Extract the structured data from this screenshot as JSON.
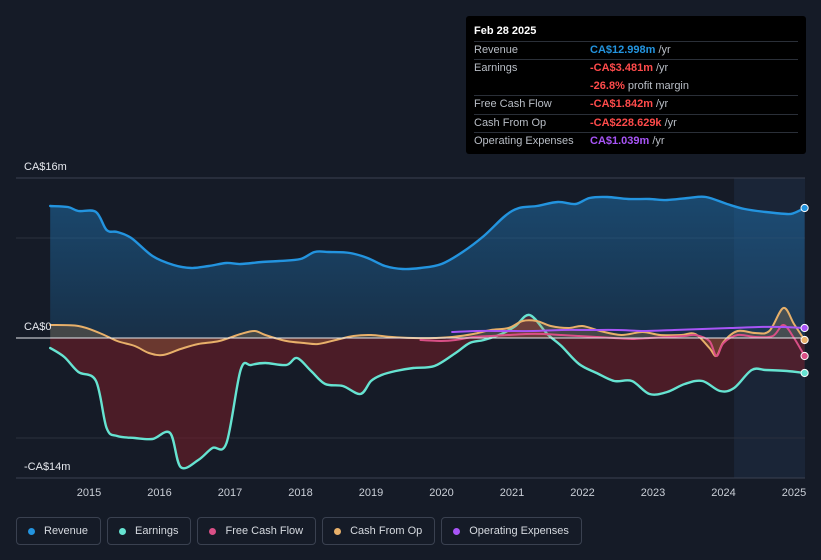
{
  "tooltip": {
    "date": "Feb 28 2025",
    "rows": [
      {
        "name": "Revenue",
        "value": "CA$12.998m",
        "unit": "/yr",
        "color": "#2394df"
      },
      {
        "name": "Earnings",
        "value": "-CA$3.481m",
        "unit": "/yr",
        "color": "#ff4b4b"
      },
      {
        "name": "",
        "value": "-26.8%",
        "unit": "profit margin",
        "color": "#ff4b4b"
      },
      {
        "name": "Free Cash Flow",
        "value": "-CA$1.842m",
        "unit": "/yr",
        "color": "#ff4b4b"
      },
      {
        "name": "Cash From Op",
        "value": "-CA$228.629k",
        "unit": "/yr",
        "color": "#ff4b4b"
      },
      {
        "name": "Operating Expenses",
        "value": "CA$1.039m",
        "unit": "/yr",
        "color": "#a855f7"
      }
    ]
  },
  "legend": [
    {
      "label": "Revenue",
      "color": "#2394df"
    },
    {
      "label": "Earnings",
      "color": "#66e3d1"
    },
    {
      "label": "Free Cash Flow",
      "color": "#d94f86"
    },
    {
      "label": "Cash From Op",
      "color": "#e8b06a"
    },
    {
      "label": "Operating Expenses",
      "color": "#a855f7"
    }
  ],
  "chart_data": {
    "type": "area",
    "title": "",
    "xlabel": "",
    "ylabel": "",
    "unit": "CA$ millions",
    "y_axis_labels": [
      "CA$16m",
      "CA$0",
      "-CA$14m"
    ],
    "x_ticks": [
      "2015",
      "2016",
      "2017",
      "2018",
      "2019",
      "2020",
      "2021",
      "2022",
      "2023",
      "2024",
      "2025"
    ],
    "x_tick_values": [
      2015,
      2016,
      2017,
      2018,
      2019,
      2020,
      2021,
      2022,
      2023,
      2024,
      2025
    ],
    "xlim": [
      2014.4,
      2025.2
    ],
    "ylim": [
      -14,
      16
    ],
    "highlight_from": 2024.15,
    "series": [
      {
        "name": "Revenue",
        "color": "#2394df",
        "fill": true,
        "x": [
          2014.45,
          2014.7,
          2014.85,
          2015.1,
          2015.25,
          2015.4,
          2015.6,
          2015.9,
          2016.2,
          2016.45,
          2016.7,
          2016.95,
          2017.15,
          2017.45,
          2017.7,
          2018.0,
          2018.2,
          2018.4,
          2018.7,
          2018.95,
          2019.2,
          2019.45,
          2019.7,
          2020.0,
          2020.3,
          2020.6,
          2020.9,
          2021.1,
          2021.35,
          2021.65,
          2021.9,
          2022.1,
          2022.35,
          2022.65,
          2022.95,
          2023.2,
          2023.5,
          2023.75,
          2024.05,
          2024.3,
          2024.6,
          2024.9,
          2025.0,
          2025.15
        ],
        "values": [
          13.2,
          13.1,
          12.7,
          12.6,
          10.8,
          10.6,
          10.0,
          8.2,
          7.3,
          7.0,
          7.2,
          7.5,
          7.4,
          7.6,
          7.7,
          7.9,
          8.6,
          8.6,
          8.5,
          8.0,
          7.2,
          6.9,
          7.0,
          7.4,
          8.6,
          10.2,
          12.2,
          13.0,
          13.2,
          13.6,
          13.4,
          14.0,
          14.1,
          13.9,
          13.9,
          13.8,
          14.0,
          14.1,
          13.4,
          12.9,
          12.6,
          12.4,
          12.5,
          13.0
        ]
      },
      {
        "name": "Earnings",
        "color": "#66e3d1",
        "fill": true,
        "x": [
          2014.45,
          2014.65,
          2014.85,
          2015.1,
          2015.25,
          2015.4,
          2015.65,
          2015.9,
          2016.15,
          2016.3,
          2016.55,
          2016.75,
          2016.95,
          2017.15,
          2017.3,
          2017.5,
          2017.8,
          2017.95,
          2018.15,
          2018.35,
          2018.6,
          2018.85,
          2019.0,
          2019.15,
          2019.35,
          2019.6,
          2019.9,
          2020.2,
          2020.4,
          2020.6,
          2020.85,
          2021.05,
          2021.25,
          2021.5,
          2021.7,
          2021.95,
          2022.2,
          2022.45,
          2022.7,
          2022.95,
          2023.2,
          2023.45,
          2023.7,
          2023.95,
          2024.15,
          2024.4,
          2024.6,
          2024.9,
          2025.15
        ],
        "values": [
          -1.0,
          -1.9,
          -3.4,
          -4.3,
          -9.0,
          -9.8,
          -10.0,
          -10.1,
          -9.5,
          -12.9,
          -12.2,
          -11.0,
          -10.5,
          -3.2,
          -2.7,
          -2.5,
          -2.7,
          -2.0,
          -3.3,
          -4.6,
          -4.8,
          -5.6,
          -4.3,
          -3.7,
          -3.3,
          -3.0,
          -2.8,
          -1.5,
          -0.5,
          -0.2,
          0.4,
          1.2,
          2.3,
          0.4,
          -0.8,
          -2.6,
          -3.5,
          -4.3,
          -4.3,
          -5.6,
          -5.4,
          -4.6,
          -4.3,
          -5.3,
          -5.0,
          -3.2,
          -3.2,
          -3.3,
          -3.5
        ]
      },
      {
        "name": "Free Cash Flow",
        "color": "#d94f86",
        "fill": false,
        "x": [
          2019.7,
          2020.0,
          2020.2,
          2020.45,
          2020.7,
          2020.95,
          2021.2,
          2021.45,
          2021.7,
          2021.95,
          2022.2,
          2022.45,
          2022.7,
          2022.95,
          2023.2,
          2023.45,
          2023.6,
          2023.8,
          2023.9,
          2024.0,
          2024.2,
          2024.45,
          2024.7,
          2024.85,
          2025.0,
          2025.15
        ],
        "values": [
          -0.2,
          -0.3,
          -0.2,
          0.1,
          0.2,
          0.3,
          0.4,
          0.4,
          0.3,
          0.2,
          0.1,
          0.0,
          -0.1,
          0.0,
          0.1,
          0.2,
          0.3,
          -0.3,
          -1.8,
          -0.5,
          0.3,
          0.1,
          0.2,
          1.3,
          0.0,
          -1.8
        ]
      },
      {
        "name": "Cash From Op",
        "color": "#e8b06a",
        "fill": true,
        "x": [
          2014.45,
          2014.85,
          2015.15,
          2015.4,
          2015.65,
          2015.85,
          2016.05,
          2016.3,
          2016.55,
          2016.85,
          2017.15,
          2017.35,
          2017.5,
          2017.8,
          2018.05,
          2018.25,
          2018.5,
          2018.75,
          2019.0,
          2019.3,
          2019.6,
          2019.9,
          2020.15,
          2020.45,
          2020.7,
          2020.95,
          2021.15,
          2021.35,
          2021.55,
          2021.8,
          2022.0,
          2022.25,
          2022.55,
          2022.85,
          2023.1,
          2023.4,
          2023.6,
          2023.8,
          2023.9,
          2024.0,
          2024.2,
          2024.45,
          2024.65,
          2024.85,
          2025.0,
          2025.15
        ],
        "values": [
          1.3,
          1.2,
          0.5,
          -0.3,
          -0.8,
          -1.5,
          -1.7,
          -1.1,
          -0.6,
          -0.3,
          0.4,
          0.7,
          0.3,
          -0.3,
          -0.5,
          -0.6,
          -0.2,
          0.2,
          0.3,
          0.1,
          0.0,
          0.0,
          0.1,
          0.4,
          0.8,
          1.0,
          1.7,
          1.7,
          1.2,
          1.0,
          1.2,
          0.7,
          0.3,
          0.6,
          0.3,
          0.3,
          0.4,
          -1.0,
          -1.8,
          -0.4,
          0.7,
          0.5,
          0.7,
          3.0,
          1.4,
          -0.2
        ]
      },
      {
        "name": "Operating Expenses",
        "color": "#a855f7",
        "fill": false,
        "x": [
          2020.15,
          2020.5,
          2020.9,
          2021.3,
          2021.7,
          2022.1,
          2022.5,
          2022.9,
          2023.3,
          2023.7,
          2024.1,
          2024.5,
          2024.85,
          2025.15
        ],
        "values": [
          0.6,
          0.7,
          0.7,
          0.7,
          0.8,
          0.8,
          0.8,
          0.7,
          0.8,
          0.9,
          1.0,
          1.1,
          1.1,
          1.0
        ]
      }
    ]
  }
}
